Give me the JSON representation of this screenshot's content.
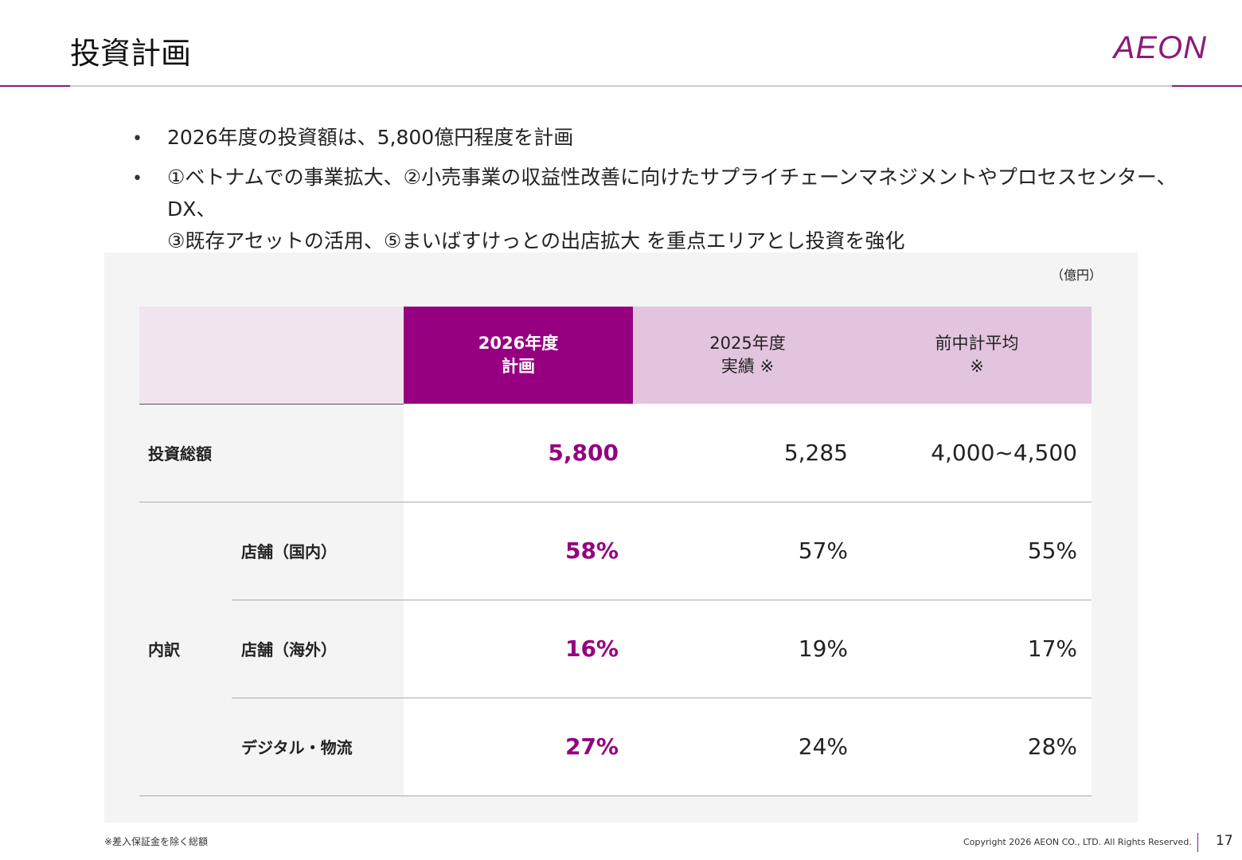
{
  "header": {
    "title": "投資計画",
    "logo": "AEON"
  },
  "bullets": [
    "2026年度の投資額は、5,800億円程度を計画",
    [
      "①ベトナムでの事業拡大、②小売事業の収益性改善に向けたサプライチェーンマネジメントやプロセスセンター、DX、",
      "③既存アセットの活用、⑤まいばすけっとの出店拡大 を重点エリアとし投資を強化"
    ]
  ],
  "table": {
    "unit": "（億円）",
    "columns": [
      [
        "2026年度",
        "計画"
      ],
      [
        "2025年度",
        "実績 ※"
      ],
      [
        "前中計平均",
        "※"
      ]
    ],
    "total": {
      "label": "投資総額",
      "values": [
        "5,800",
        "5,285",
        "4,000~4,500"
      ]
    },
    "breakdown": {
      "label": "内訳",
      "rows": [
        {
          "label": "店舗（国内）",
          "values": [
            "58%",
            "57%",
            "55%"
          ]
        },
        {
          "label": "店舗（海外）",
          "values": [
            "16%",
            "19%",
            "17%"
          ]
        },
        {
          "label": "デジタル・物流",
          "values": [
            "27%",
            "24%",
            "28%"
          ]
        }
      ]
    }
  },
  "footnote": "※差入保証金を除く総額",
  "copyright": "Copyright 2026 AEON CO., LTD. All Rights Reserved.",
  "page": "17"
}
